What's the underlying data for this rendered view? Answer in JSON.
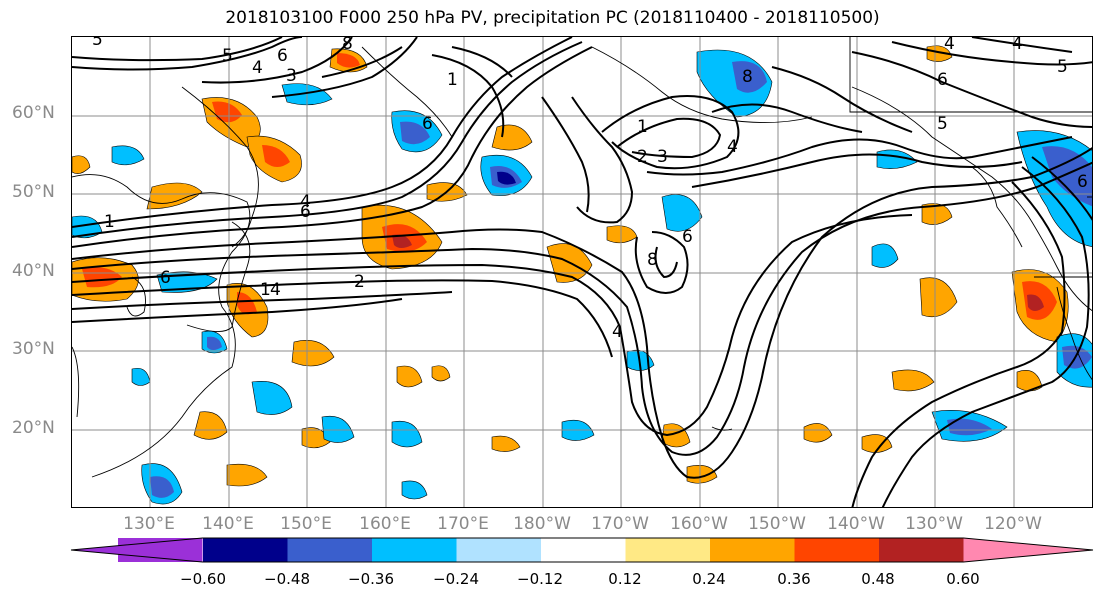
{
  "title": "2018103100 F000 250 hPa PV, precipitation PC (2018110400 - 2018110500)",
  "lat_labels": [
    "60°N",
    "50°N",
    "40°N",
    "30°N",
    "20°N"
  ],
  "lon_labels": [
    "130°E",
    "140°E",
    "150°E",
    "160°E",
    "170°E",
    "180°W",
    "170°W",
    "160°W",
    "150°W",
    "140°W",
    "130°W",
    "120°W"
  ],
  "colorbar": {
    "labels": [
      "−0.60",
      "−0.48",
      "−0.36",
      "−0.24",
      "−0.12",
      "0.12",
      "0.24",
      "0.36",
      "0.48",
      "0.60"
    ],
    "colors": [
      "#9b30d8",
      "#00008b",
      "#3a5fcd",
      "#00bfff",
      "#b0e2ff",
      "#ffffff",
      "#ffe985",
      "#ffa500",
      "#ff4500",
      "#b22222",
      "#ff88b0"
    ]
  },
  "pv_contour_labels": [
    "1",
    "2",
    "3",
    "4",
    "5",
    "6",
    "8"
  ],
  "colors": {
    "grid": "#8c8c8c",
    "contour": "#000000",
    "axis_text": "#8a8a8a"
  }
}
